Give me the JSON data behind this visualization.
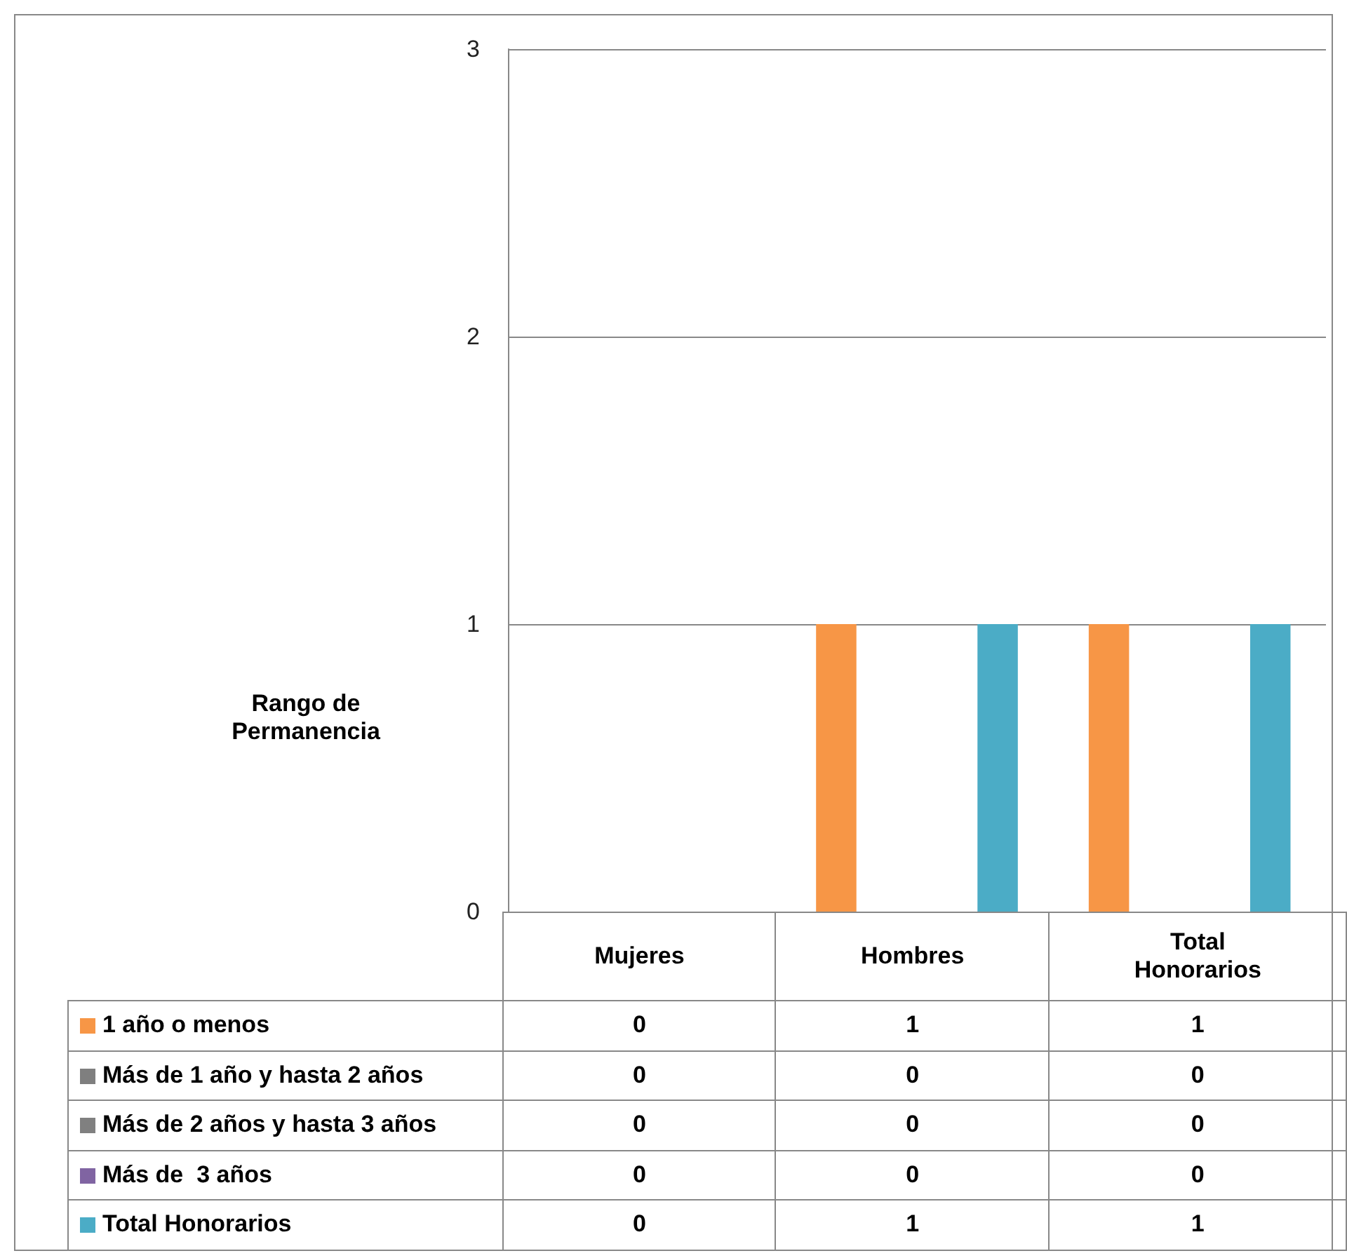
{
  "chart_data": {
    "type": "bar",
    "ylabel": "Rango de Permanencia",
    "categories": [
      "Mujeres",
      "Hombres",
      "Total Honorarios"
    ],
    "series": [
      {
        "name": "1 año o menos",
        "color": "#f79646",
        "values": [
          0,
          1,
          1
        ]
      },
      {
        "name": "Más de 1 año y hasta 2 años",
        "color": "#7f7f7f",
        "values": [
          0,
          0,
          0
        ]
      },
      {
        "name": "Más de 2 años y hasta 3 años",
        "color": "#808080",
        "values": [
          0,
          0,
          0
        ]
      },
      {
        "name": "Más de  3 años",
        "color": "#8064a2",
        "values": [
          0,
          0,
          0
        ]
      },
      {
        "name": "Total Honorarios",
        "color": "#4bacc6",
        "values": [
          0,
          1,
          1
        ]
      }
    ],
    "ylim": [
      0,
      3
    ],
    "yticks": [
      0,
      1,
      2,
      3
    ],
    "grid": "y",
    "legend": "bottom left",
    "data_labels": true
  }
}
